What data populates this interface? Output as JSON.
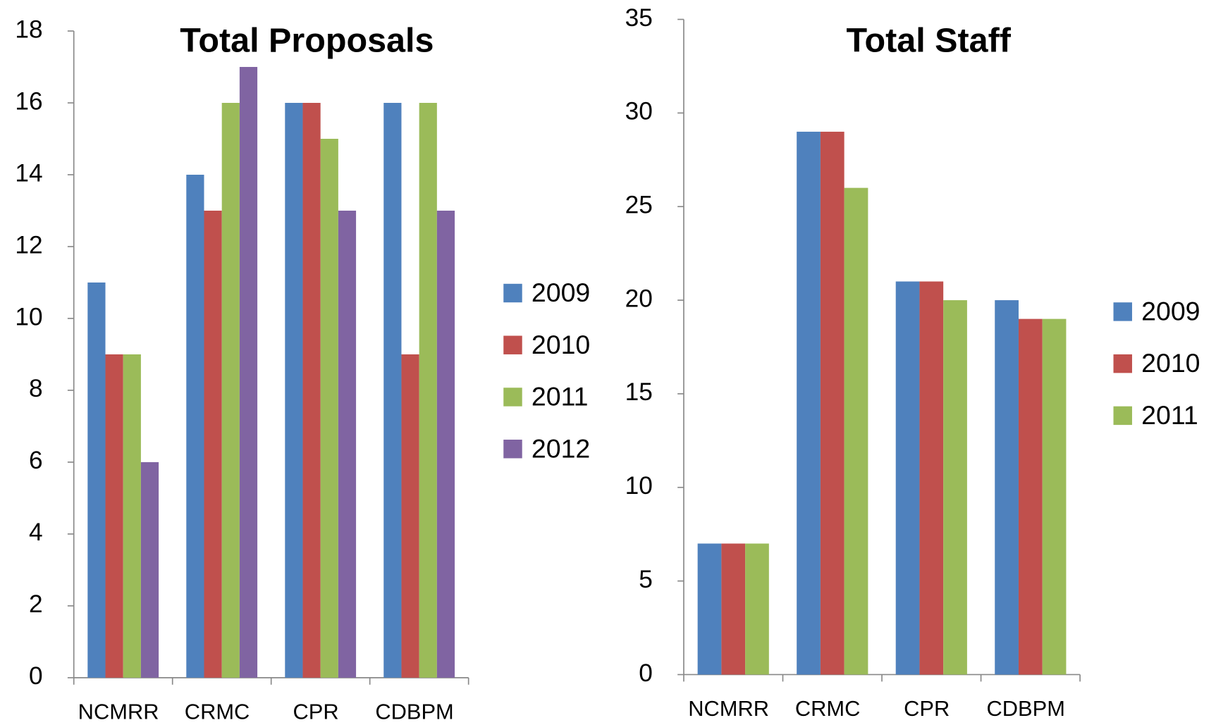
{
  "chart_data": [
    {
      "type": "bar",
      "title": "Total Proposals",
      "categories": [
        "NCMRR",
        "CRMC",
        "CPR",
        "CDBPM"
      ],
      "series": [
        {
          "name": "2009",
          "color": "#4f81bd",
          "values": [
            11,
            14,
            16,
            16
          ]
        },
        {
          "name": "2010",
          "color": "#c0504d",
          "values": [
            9,
            13,
            16,
            9
          ]
        },
        {
          "name": "2011",
          "color": "#9bbb59",
          "values": [
            9,
            16,
            15,
            16
          ]
        },
        {
          "name": "2012",
          "color": "#8064a2",
          "values": [
            6,
            17,
            13,
            13
          ]
        }
      ],
      "ylim": [
        0,
        18
      ],
      "yticks": [
        0,
        2,
        4,
        6,
        8,
        10,
        12,
        14,
        16,
        18
      ],
      "grid": false,
      "legend": "right"
    },
    {
      "type": "bar",
      "title": "Total Staff",
      "categories": [
        "NCMRR",
        "CRMC",
        "CPR",
        "CDBPM"
      ],
      "series": [
        {
          "name": "2009",
          "color": "#4f81bd",
          "values": [
            7,
            29,
            21,
            20
          ]
        },
        {
          "name": "2010",
          "color": "#c0504d",
          "values": [
            7,
            29,
            21,
            19
          ]
        },
        {
          "name": "2011",
          "color": "#9bbb59",
          "values": [
            7,
            26,
            20,
            19
          ]
        }
      ],
      "ylim": [
        0,
        35
      ],
      "yticks": [
        0,
        5,
        10,
        15,
        20,
        25,
        30,
        35
      ],
      "grid": false,
      "legend": "right"
    }
  ]
}
